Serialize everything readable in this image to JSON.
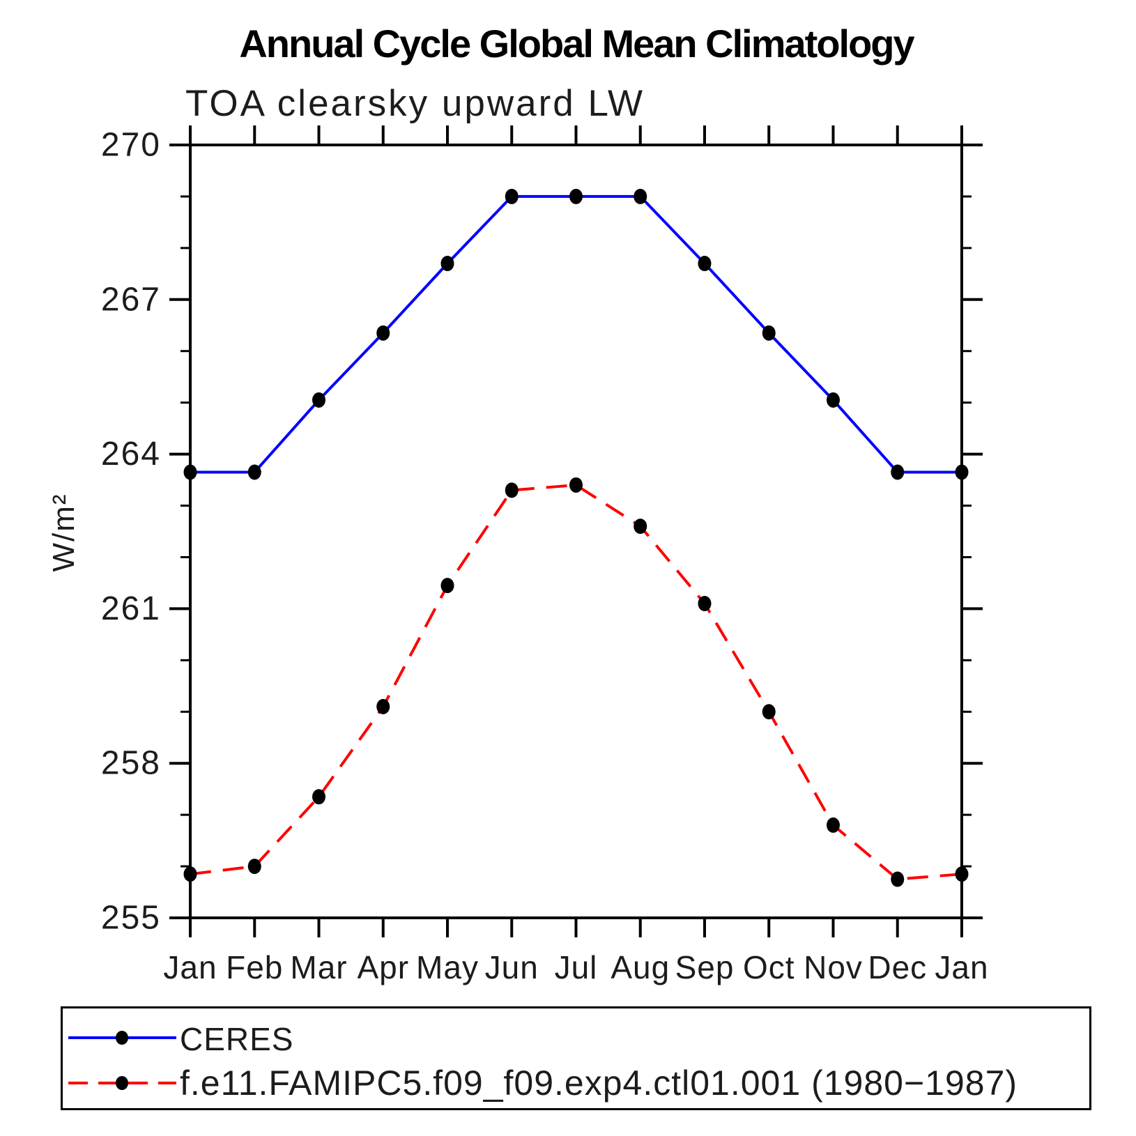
{
  "chart_data": {
    "type": "line",
    "title": "Annual Cycle Global Mean Climatology",
    "subtitle": "TOA clearsky upward LW",
    "ylabel": "W/m²",
    "categories": [
      "Jan",
      "Feb",
      "Mar",
      "Apr",
      "May",
      "Jun",
      "Jul",
      "Aug",
      "Sep",
      "Oct",
      "Nov",
      "Dec",
      "Jan"
    ],
    "ylim": [
      255,
      270
    ],
    "ytick_major": [
      255,
      258,
      261,
      264,
      267,
      270
    ],
    "ytick_minor_step": 1,
    "grid": false,
    "legend_position": "bottom",
    "axis_color": "#000000",
    "series": [
      {
        "name": "CERES",
        "color": "#0000ff",
        "style": "solid",
        "marker": "black-dot",
        "values": [
          263.65,
          263.65,
          265.05,
          266.35,
          267.7,
          269.0,
          269.0,
          269.0,
          267.7,
          266.35,
          265.05,
          263.65,
          263.65
        ]
      },
      {
        "name": "f.e11.FAMIPC5.f09_f09.exp4.ctl01.001 (1980−1987)",
        "color": "#ff0000",
        "style": "dashed",
        "marker": "black-dot",
        "values": [
          255.85,
          256.0,
          257.35,
          259.1,
          261.45,
          263.3,
          263.4,
          262.6,
          261.1,
          259.0,
          256.8,
          255.75,
          255.85
        ]
      }
    ]
  }
}
